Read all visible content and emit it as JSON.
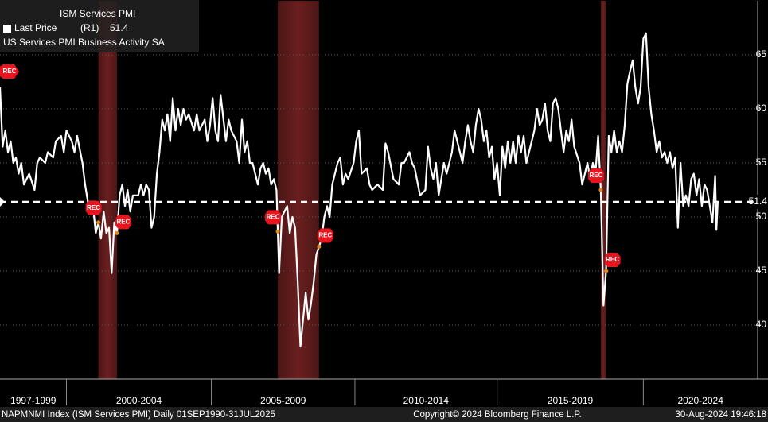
{
  "chart_data": {
    "type": "line",
    "title": "ISM Services PMI",
    "subtitle": "US Services PMI Business Activity SA",
    "series": [
      {
        "name": "Last Price",
        "axis_ref": "(R1)",
        "color": "#ffffff",
        "last_value": 51.4,
        "x": [
          1997.5,
          1997.6,
          1997.7,
          1997.8,
          1997.9,
          1998.0,
          1998.1,
          1998.2,
          1998.3,
          1998.4,
          1998.6,
          1998.8,
          1998.9,
          1999.0,
          1999.2,
          1999.3,
          1999.5,
          1999.6,
          1999.8,
          1999.9,
          2000.0,
          2000.2,
          2000.3,
          2000.4,
          2000.6,
          2000.7,
          2000.8,
          2000.9,
          2001.0,
          2001.1,
          2001.2,
          2001.3,
          2001.4,
          2001.5,
          2001.6,
          2001.7,
          2001.8,
          2001.9,
          2002.0,
          2002.1,
          2002.2,
          2002.3,
          2002.4,
          2002.5,
          2002.7,
          2002.8,
          2002.9,
          2003.0,
          2003.1,
          2003.2,
          2003.3,
          2003.4,
          2003.5,
          2003.6,
          2003.7,
          2003.8,
          2003.9,
          2004.0,
          2004.1,
          2004.2,
          2004.3,
          2004.4,
          2004.5,
          2004.6,
          2004.8,
          2004.9,
          2005.0,
          2005.2,
          2005.3,
          2005.4,
          2005.5,
          2005.6,
          2005.7,
          2005.8,
          2006.0,
          2006.1,
          2006.2,
          2006.4,
          2006.5,
          2006.6,
          2006.7,
          2006.8,
          2006.9,
          2007.0,
          2007.2,
          2007.3,
          2007.4,
          2007.5,
          2007.6,
          2007.7,
          2007.8,
          2007.9,
          2008.0,
          2008.1,
          2008.2,
          2008.3,
          2008.4,
          2008.5,
          2008.6,
          2008.7,
          2008.8,
          2008.9,
          2009.0,
          2009.1,
          2009.2,
          2009.3,
          2009.4,
          2009.6,
          2009.7,
          2009.8,
          2009.9,
          2010.0,
          2010.2,
          2010.3,
          2010.4,
          2010.5,
          2010.6,
          2010.8,
          2010.9,
          2011.0,
          2011.1,
          2011.3,
          2011.4,
          2011.5,
          2011.7,
          2011.9,
          2012.0,
          2012.1,
          2012.3,
          2012.5,
          2012.6,
          2012.7,
          2012.9,
          2013.0,
          2013.1,
          2013.3,
          2013.5,
          2013.6,
          2013.7,
          2013.8,
          2013.9,
          2014.0,
          2014.2,
          2014.3,
          2014.5,
          2014.6,
          2014.7,
          2014.8,
          2014.9,
          2015.0,
          2015.1,
          2015.2,
          2015.3,
          2015.4,
          2015.5,
          2015.6,
          2015.7,
          2015.8,
          2015.9,
          2016.0,
          2016.1,
          2016.2,
          2016.3,
          2016.4,
          2016.5,
          2016.6,
          2016.7,
          2016.8,
          2016.9,
          2017.0,
          2017.1,
          2017.2,
          2017.3,
          2017.5,
          2017.6,
          2017.7,
          2017.8,
          2017.9,
          2018.0,
          2018.1,
          2018.2,
          2018.3,
          2018.4,
          2018.5,
          2018.6,
          2018.7,
          2018.8,
          2018.9,
          2019.0,
          2019.1,
          2019.3,
          2019.4,
          2019.5,
          2019.6,
          2019.7,
          2019.8,
          2019.9,
          2020.0,
          2020.1,
          2020.2,
          2020.3,
          2020.4,
          2020.5,
          2020.6,
          2020.7,
          2020.8,
          2020.9,
          2021.0,
          2021.1,
          2021.2,
          2021.3,
          2021.4,
          2021.5,
          2021.6,
          2021.7,
          2021.8,
          2021.9,
          2022.0,
          2022.1,
          2022.2,
          2022.3,
          2022.4,
          2022.5,
          2022.6,
          2022.7,
          2022.8,
          2022.9,
          2023.0,
          2023.1,
          2023.2,
          2023.3,
          2023.4,
          2023.5,
          2023.6,
          2023.7,
          2023.8,
          2023.9,
          2024.0,
          2024.1,
          2024.2,
          2024.3,
          2024.4,
          2024.45,
          2024.5
        ],
        "values": [
          62.0,
          56.5,
          58,
          56,
          57,
          55,
          55.5,
          54,
          55,
          53,
          54,
          52.5,
          55,
          55.5,
          55,
          56,
          55.5,
          57,
          57.5,
          56,
          58,
          57,
          56,
          57.5,
          55,
          53,
          51.5,
          50.5,
          51,
          48.5,
          49.5,
          48,
          50.5,
          48.5,
          49,
          44.8,
          49.5,
          48.5,
          52,
          53,
          51,
          52.5,
          50.5,
          52,
          52,
          53,
          52,
          53,
          52.5,
          49,
          50,
          54,
          56,
          59,
          58,
          59.5,
          57,
          61,
          58,
          60,
          58.5,
          60,
          59,
          59.5,
          58,
          59.5,
          58,
          59,
          57,
          58.5,
          61,
          58,
          57,
          61.3,
          57,
          59,
          58,
          57,
          55,
          59,
          56,
          57,
          55,
          55,
          53,
          54.5,
          55,
          54,
          54.5,
          53,
          53.5,
          52.5,
          44.8,
          50,
          50.5,
          51,
          48.5,
          50,
          49,
          44,
          38,
          40.5,
          43,
          40.5,
          42,
          44,
          46.5,
          48,
          50,
          51,
          50,
          53,
          55,
          55.5,
          53,
          54,
          53.5,
          55,
          57,
          58,
          54,
          54.5,
          53,
          52.5,
          53,
          52.5,
          56.8,
          56,
          53.5,
          53,
          55,
          55,
          56,
          55,
          54.5,
          52,
          52.5,
          56.5,
          54.5,
          53.5,
          55,
          52,
          55,
          54,
          56,
          58,
          57,
          56,
          55,
          57,
          58.5,
          57,
          56,
          58.5,
          60,
          59,
          57,
          58,
          55.5,
          56.5,
          53.5,
          55,
          52,
          56.5,
          54.5,
          57,
          55,
          57,
          55,
          57.5,
          56,
          57.5,
          55,
          57,
          58,
          60,
          58.5,
          59,
          60.5,
          58,
          57,
          60.5,
          61,
          60,
          58,
          56,
          58,
          57,
          59,
          56.5,
          55,
          53,
          54,
          55,
          53.5,
          55,
          54,
          57.5,
          52.5,
          41.8,
          45,
          57.5,
          56,
          58,
          56,
          57,
          56,
          58.5,
          62.3,
          63.5,
          64.5,
          62,
          60.5,
          62,
          66.5,
          67,
          62,
          59.5,
          58,
          56,
          57,
          55.5,
          56,
          55,
          56,
          54.5,
          55.5,
          49,
          55,
          51,
          52,
          51,
          53.5,
          54,
          52,
          53.5,
          51,
          53,
          52.5,
          51,
          49.5,
          53.8,
          48.8,
          51.4
        ]
      }
    ],
    "xlim": [
      1997.5,
      2026.0
    ],
    "ylim": [
      35,
      70
    ],
    "yticks": [
      40,
      45,
      50,
      55,
      60,
      65
    ],
    "grid": true,
    "x_periods": [
      {
        "label": "1997-1999",
        "start": 1997.5,
        "end": 2000.0
      },
      {
        "label": "2000-2004",
        "start": 2000.0,
        "end": 2005.45
      },
      {
        "label": "2005-2009",
        "start": 2005.45,
        "end": 2010.85
      },
      {
        "label": "2010-2014",
        "start": 2010.85,
        "end": 2016.2
      },
      {
        "label": "2015-2019",
        "start": 2016.2,
        "end": 2021.7
      },
      {
        "label": "2020-2024",
        "start": 2021.7,
        "end": 2026.0
      }
    ],
    "recession_label": "REC",
    "recessions": [
      {
        "start": 2001.2,
        "end": 2001.9
      },
      {
        "start": 2007.95,
        "end": 2009.5
      },
      {
        "start": 2020.1,
        "end": 2020.3
      }
    ],
    "recession_color": "#6b1f1f",
    "footer": {
      "left": "NAPMNMI Index (ISM Services PMI)  Daily 01SEP1990-31JUL2025",
      "center": "Copyright© 2024 Bloomberg Finance L.P.",
      "right": "30-Aug-2024 19:46:18"
    }
  }
}
